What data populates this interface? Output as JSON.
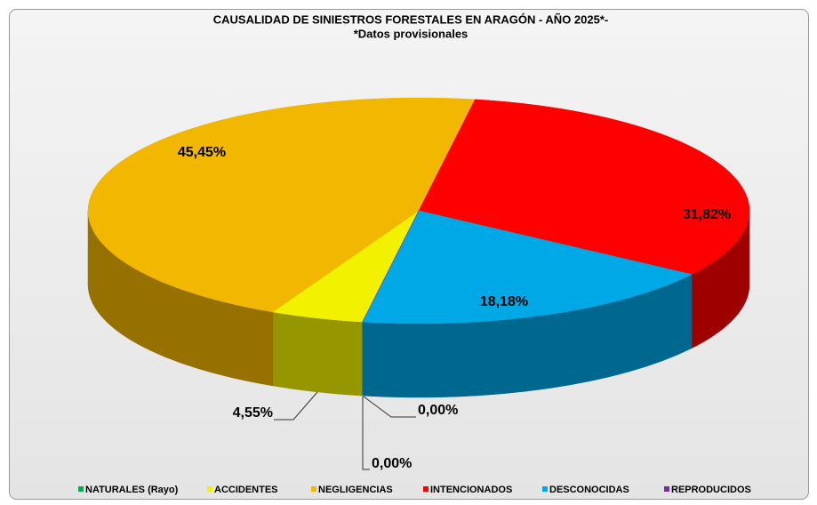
{
  "chart_data": {
    "type": "pie3d",
    "title": "CAUSALIDAD DE SINIESTROS FORESTALES EN ARAGÓN  - AÑO 2025*-",
    "subtitle": "*Datos provisionales",
    "categories": [
      "NATURALES (Rayo)",
      "ACCIDENTES",
      "NEGLIGENCIAS",
      "INTENCIONADOS",
      "DESCONOCIDAS",
      "REPRODUCIDOS"
    ],
    "values": [
      0,
      4.55,
      45.45,
      31.82,
      18.18,
      0
    ],
    "value_labels": [
      "0,00%",
      "4,55%",
      "45,45%",
      "31,82%",
      "18,18%",
      "0,00%"
    ],
    "colors": [
      "#00b050",
      "#f2f200",
      "#f2b700",
      "#ff0000",
      "#00a8e6",
      "#7030a0"
    ],
    "legend": "bottom"
  }
}
